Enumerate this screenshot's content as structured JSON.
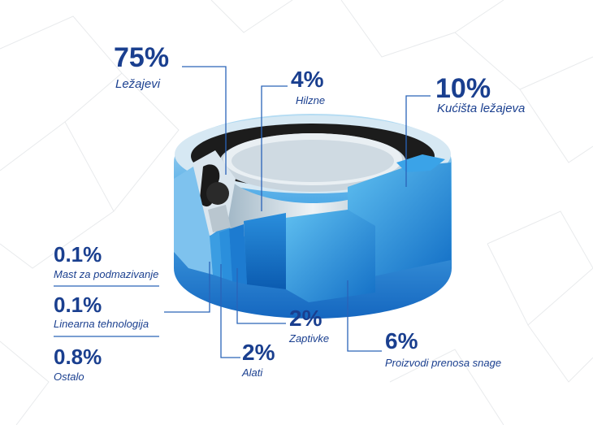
{
  "segments": [
    {
      "value": "75%",
      "label": "Ležajevi"
    },
    {
      "value": "4%",
      "label": "Hilzne"
    },
    {
      "value": "10%",
      "label": "Kućišta ležajeva"
    },
    {
      "value": "0.1%",
      "label": "Mast za podmazivanje"
    },
    {
      "value": "0.1%",
      "label": "Linearna tehnologija"
    },
    {
      "value": "0.8%",
      "label": "Ostalo"
    },
    {
      "value": "2%",
      "label": "Zaptivke"
    },
    {
      "value": "2%",
      "label": "Alati"
    },
    {
      "value": "6%",
      "label": "Proizvodi prenosa snage"
    }
  ],
  "colors": {
    "text": "#1a3f8f",
    "leader": "#2a63b8",
    "block_light": "#58b7ec",
    "block_dark": "#1372c8",
    "steel_light": "#dfe8ee",
    "steel_dark": "#8aa1b3",
    "background_lines": "#e6e8ea"
  }
}
